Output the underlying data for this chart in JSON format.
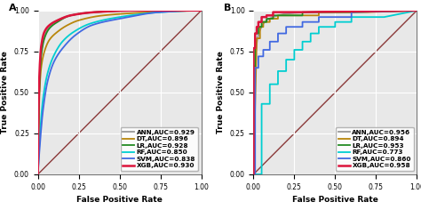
{
  "panel_A": {
    "label": "A",
    "curves": [
      {
        "name": "ANN,AUC=0.929",
        "color": "#999999",
        "lw": 1.3,
        "smooth": true,
        "points": [
          [
            0,
            0
          ],
          [
            0.005,
            0.4
          ],
          [
            0.01,
            0.58
          ],
          [
            0.02,
            0.74
          ],
          [
            0.04,
            0.84
          ],
          [
            0.07,
            0.9
          ],
          [
            0.12,
            0.94
          ],
          [
            0.2,
            0.97
          ],
          [
            0.35,
            0.99
          ],
          [
            0.6,
            1.0
          ],
          [
            1.0,
            1.0
          ]
        ]
      },
      {
        "name": "DT,AUC=0.896",
        "color": "#B8860B",
        "lw": 1.3,
        "smooth": true,
        "points": [
          [
            0,
            0
          ],
          [
            0.01,
            0.5
          ],
          [
            0.02,
            0.65
          ],
          [
            0.04,
            0.75
          ],
          [
            0.07,
            0.82
          ],
          [
            0.12,
            0.87
          ],
          [
            0.18,
            0.91
          ],
          [
            0.25,
            0.94
          ],
          [
            0.4,
            0.97
          ],
          [
            0.7,
            0.99
          ],
          [
            1.0,
            1.0
          ]
        ]
      },
      {
        "name": "LR,AUC=0.928",
        "color": "#228B22",
        "lw": 1.3,
        "smooth": true,
        "points": [
          [
            0,
            0
          ],
          [
            0.005,
            0.35
          ],
          [
            0.01,
            0.55
          ],
          [
            0.02,
            0.72
          ],
          [
            0.04,
            0.83
          ],
          [
            0.07,
            0.89
          ],
          [
            0.12,
            0.93
          ],
          [
            0.2,
            0.97
          ],
          [
            0.35,
            0.99
          ],
          [
            0.6,
            1.0
          ],
          [
            1.0,
            1.0
          ]
        ]
      },
      {
        "name": "RF,AUC=0.850",
        "color": "#00CED1",
        "lw": 1.3,
        "smooth": true,
        "points": [
          [
            0,
            0
          ],
          [
            0.01,
            0.2
          ],
          [
            0.03,
            0.45
          ],
          [
            0.06,
            0.62
          ],
          [
            0.1,
            0.73
          ],
          [
            0.15,
            0.81
          ],
          [
            0.22,
            0.87
          ],
          [
            0.32,
            0.92
          ],
          [
            0.5,
            0.96
          ],
          [
            0.75,
            0.99
          ],
          [
            1.0,
            1.0
          ]
        ]
      },
      {
        "name": "SVM,AUC=0.838",
        "color": "#4169E1",
        "lw": 1.3,
        "smooth": true,
        "points": [
          [
            0,
            0
          ],
          [
            0.01,
            0.15
          ],
          [
            0.03,
            0.38
          ],
          [
            0.06,
            0.57
          ],
          [
            0.1,
            0.69
          ],
          [
            0.16,
            0.78
          ],
          [
            0.23,
            0.85
          ],
          [
            0.33,
            0.91
          ],
          [
            0.5,
            0.95
          ],
          [
            0.75,
            0.99
          ],
          [
            1.0,
            1.0
          ]
        ]
      },
      {
        "name": "XGB,AUC=0.930",
        "color": "#DC143C",
        "lw": 1.8,
        "smooth": true,
        "points": [
          [
            0,
            0
          ],
          [
            0.005,
            0.45
          ],
          [
            0.01,
            0.63
          ],
          [
            0.02,
            0.78
          ],
          [
            0.04,
            0.87
          ],
          [
            0.07,
            0.91
          ],
          [
            0.12,
            0.94
          ],
          [
            0.2,
            0.97
          ],
          [
            0.35,
            0.99
          ],
          [
            0.6,
            1.0
          ],
          [
            1.0,
            1.0
          ]
        ]
      }
    ],
    "xlabel": "False Positive Rate",
    "ylabel": "True Positive Rate",
    "xticks": [
      0.0,
      0.25,
      0.5,
      0.75,
      1.0
    ],
    "yticks": [
      0.0,
      0.25,
      0.5,
      0.75,
      1.0
    ]
  },
  "panel_B": {
    "label": "B",
    "curves": [
      {
        "name": "ANN,AUC=0.956",
        "color": "#999999",
        "lw": 1.3,
        "smooth": true,
        "points": [
          [
            0,
            0
          ],
          [
            0.005,
            0.5
          ],
          [
            0.01,
            0.66
          ],
          [
            0.02,
            0.8
          ],
          [
            0.04,
            0.88
          ],
          [
            0.07,
            0.93
          ],
          [
            0.12,
            0.96
          ],
          [
            0.2,
            0.98
          ],
          [
            0.35,
            0.99
          ],
          [
            0.6,
            1.0
          ],
          [
            1.0,
            1.0
          ]
        ]
      },
      {
        "name": "DT,AUC=0.894",
        "color": "#B8860B",
        "lw": 1.3,
        "smooth": false,
        "points": [
          [
            0,
            0
          ],
          [
            0.0,
            0.0
          ],
          [
            0.02,
            0.83
          ],
          [
            0.02,
            0.83
          ],
          [
            0.04,
            0.83
          ],
          [
            0.04,
            0.9
          ],
          [
            0.06,
            0.9
          ],
          [
            0.06,
            0.93
          ],
          [
            0.1,
            0.93
          ],
          [
            0.1,
            0.95
          ],
          [
            0.15,
            0.95
          ],
          [
            0.15,
            0.97
          ],
          [
            0.4,
            0.97
          ],
          [
            0.4,
            0.99
          ],
          [
            0.7,
            0.99
          ],
          [
            1.0,
            1.0
          ]
        ]
      },
      {
        "name": "LR,AUC=0.953",
        "color": "#228B22",
        "lw": 1.3,
        "smooth": false,
        "points": [
          [
            0,
            0
          ],
          [
            0.0,
            0.66
          ],
          [
            0.01,
            0.66
          ],
          [
            0.01,
            0.86
          ],
          [
            0.03,
            0.86
          ],
          [
            0.03,
            0.9
          ],
          [
            0.05,
            0.9
          ],
          [
            0.05,
            0.93
          ],
          [
            0.08,
            0.93
          ],
          [
            0.08,
            0.95
          ],
          [
            0.12,
            0.95
          ],
          [
            0.12,
            0.97
          ],
          [
            0.3,
            0.97
          ],
          [
            0.3,
            0.99
          ],
          [
            0.6,
            0.99
          ],
          [
            1.0,
            1.0
          ]
        ]
      },
      {
        "name": "RF,AUC=0.773",
        "color": "#00CED1",
        "lw": 1.3,
        "smooth": false,
        "points": [
          [
            0,
            0
          ],
          [
            0.05,
            0.0
          ],
          [
            0.05,
            0.43
          ],
          [
            0.1,
            0.43
          ],
          [
            0.1,
            0.55
          ],
          [
            0.15,
            0.55
          ],
          [
            0.15,
            0.63
          ],
          [
            0.2,
            0.63
          ],
          [
            0.2,
            0.7
          ],
          [
            0.25,
            0.7
          ],
          [
            0.25,
            0.76
          ],
          [
            0.3,
            0.76
          ],
          [
            0.3,
            0.81
          ],
          [
            0.35,
            0.81
          ],
          [
            0.35,
            0.86
          ],
          [
            0.4,
            0.86
          ],
          [
            0.4,
            0.9
          ],
          [
            0.5,
            0.9
          ],
          [
            0.5,
            0.93
          ],
          [
            0.6,
            0.93
          ],
          [
            0.6,
            0.96
          ],
          [
            0.8,
            0.96
          ],
          [
            1.0,
            1.0
          ]
        ]
      },
      {
        "name": "SVM,AUC=0.860",
        "color": "#4169E1",
        "lw": 1.3,
        "smooth": false,
        "points": [
          [
            0,
            0
          ],
          [
            0.01,
            0.0
          ],
          [
            0.01,
            0.65
          ],
          [
            0.03,
            0.65
          ],
          [
            0.03,
            0.72
          ],
          [
            0.06,
            0.72
          ],
          [
            0.06,
            0.76
          ],
          [
            0.1,
            0.76
          ],
          [
            0.1,
            0.81
          ],
          [
            0.15,
            0.81
          ],
          [
            0.15,
            0.86
          ],
          [
            0.2,
            0.86
          ],
          [
            0.2,
            0.9
          ],
          [
            0.3,
            0.9
          ],
          [
            0.3,
            0.93
          ],
          [
            0.4,
            0.93
          ],
          [
            0.4,
            0.96
          ],
          [
            0.6,
            0.96
          ],
          [
            0.6,
            0.99
          ],
          [
            1.0,
            1.0
          ]
        ]
      },
      {
        "name": "XGB,AUC=0.958",
        "color": "#DC143C",
        "lw": 1.8,
        "smooth": false,
        "points": [
          [
            0,
            0
          ],
          [
            0.0,
            0.77
          ],
          [
            0.01,
            0.77
          ],
          [
            0.01,
            0.86
          ],
          [
            0.02,
            0.86
          ],
          [
            0.02,
            0.9
          ],
          [
            0.03,
            0.9
          ],
          [
            0.03,
            0.93
          ],
          [
            0.05,
            0.93
          ],
          [
            0.05,
            0.96
          ],
          [
            0.08,
            0.96
          ],
          [
            0.08,
            0.97
          ],
          [
            0.12,
            0.97
          ],
          [
            0.12,
            0.99
          ],
          [
            0.3,
            0.99
          ],
          [
            1.0,
            1.0
          ]
        ]
      }
    ],
    "xlabel": "False Positive Rate",
    "ylabel": "True Positive Rate",
    "xticks": [
      0.0,
      0.25,
      0.5,
      0.75,
      1.0
    ],
    "yticks": [
      0.0,
      0.25,
      0.5,
      0.75,
      1.0
    ]
  },
  "diagonal_color": "#8B3A3A",
  "bg_color": "#E8E8E8",
  "grid_color": "white",
  "legend_fontsize": 5.2,
  "axis_label_fontsize": 6.5,
  "tick_fontsize": 5.5,
  "panel_label_fontsize": 8
}
